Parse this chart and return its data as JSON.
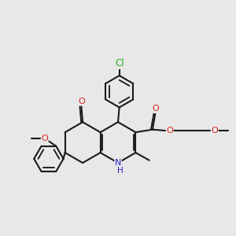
{
  "background_color": "#e8e8e8",
  "bond_color": "#1a1a1a",
  "bond_width": 1.5,
  "atom_colors": {
    "Cl": "#22aa22",
    "O": "#dd2222",
    "N": "#2222cc",
    "C": "#1a1a1a"
  },
  "font_size": 7.5
}
